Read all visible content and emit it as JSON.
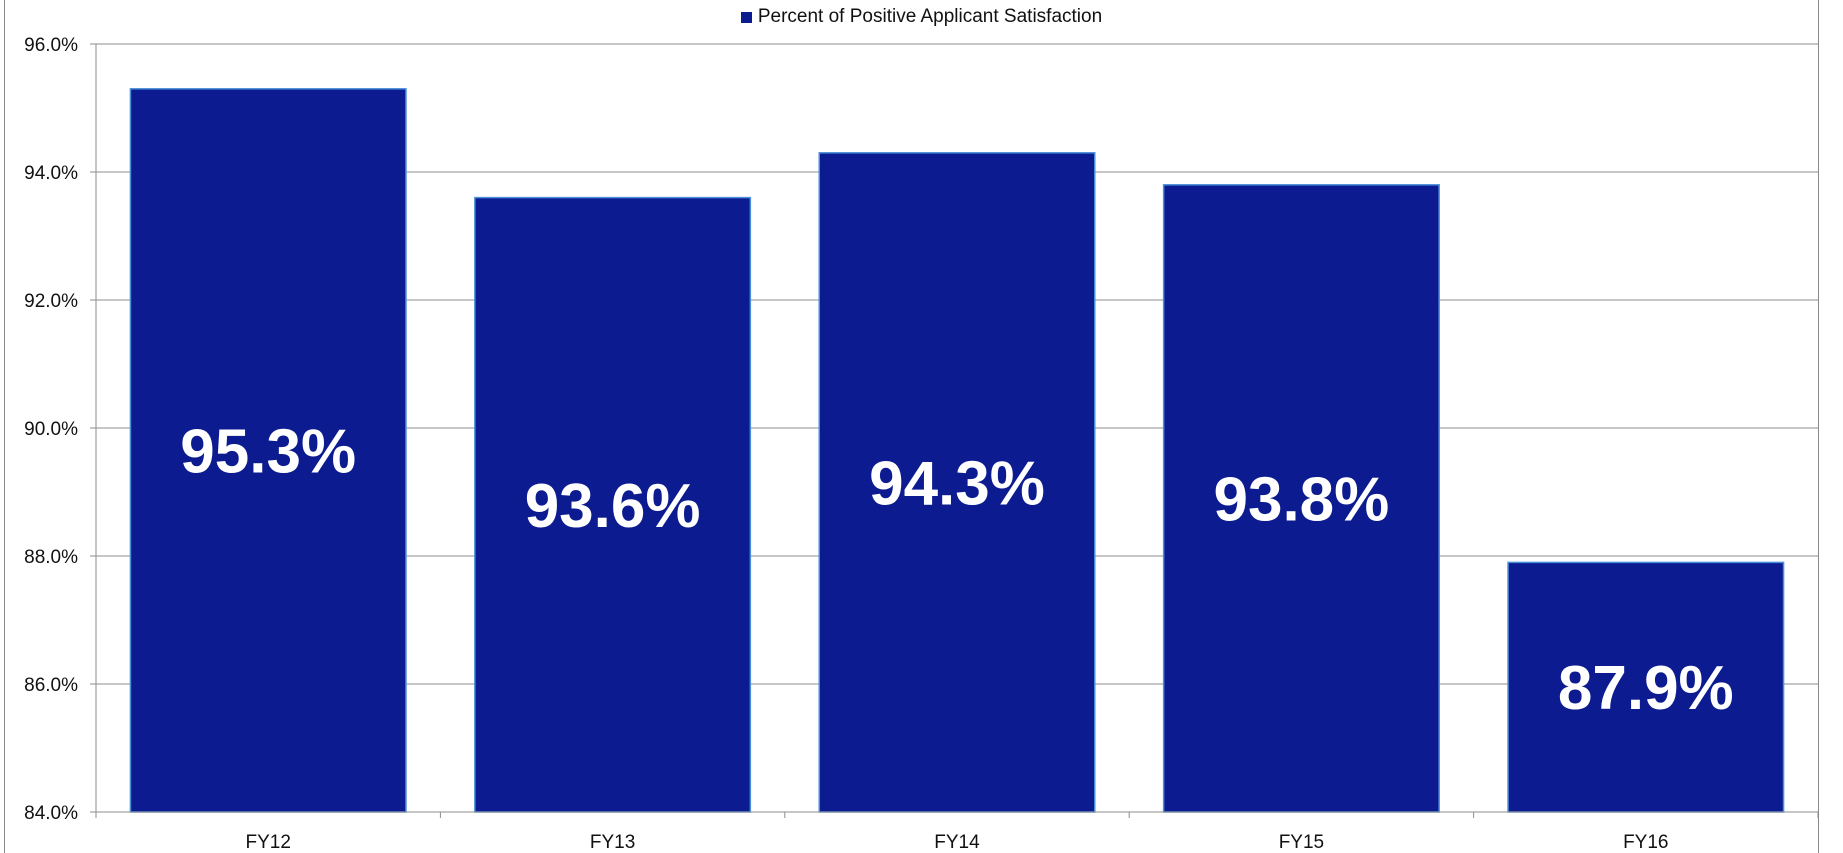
{
  "chart_data": {
    "type": "bar",
    "categories": [
      "FY12",
      "FY13",
      "FY14",
      "FY15",
      "FY16"
    ],
    "series": [
      {
        "name": "Percent of Positive Applicant Satisfaction",
        "values": [
          95.3,
          93.6,
          94.3,
          93.8,
          87.9
        ],
        "data_labels": [
          "95.3%",
          "93.6%",
          "94.3%",
          "93.8%",
          "87.9%"
        ]
      }
    ],
    "ylim": [
      84.0,
      96.0
    ],
    "y_ticks": [
      "84.0%",
      "86.0%",
      "88.0%",
      "90.0%",
      "92.0%",
      "94.0%",
      "96.0%"
    ],
    "grid": true,
    "legend_position": "top-center",
    "colors": {
      "bar": "#0c1c90",
      "bar_edge": "#4a90d9",
      "grid": "#8c8c8c",
      "data_label": "#ffffff"
    }
  }
}
